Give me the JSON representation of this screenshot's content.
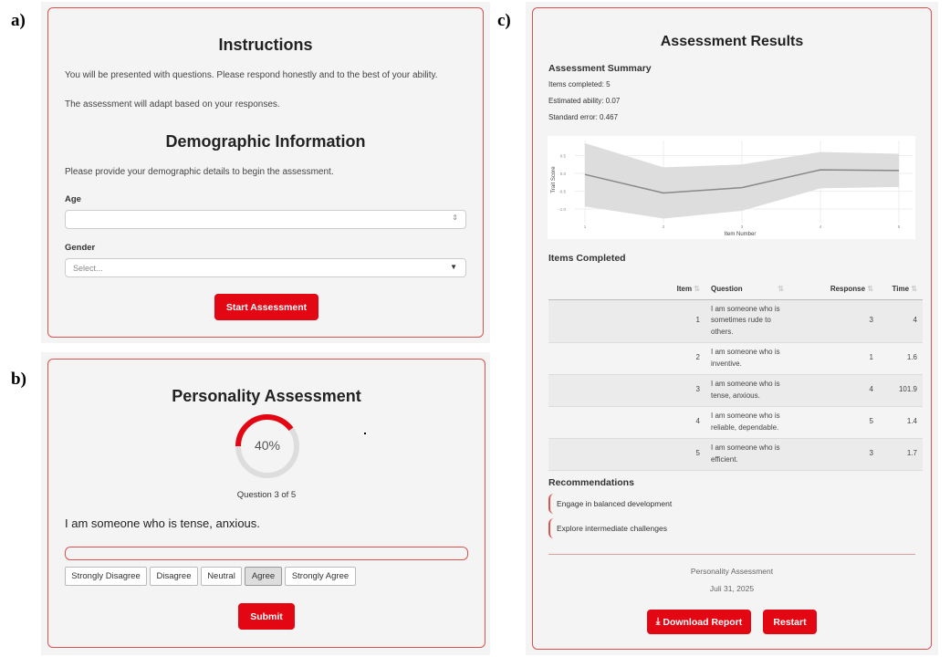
{
  "labels": {
    "a": "a)",
    "b": "b)",
    "c": "c)"
  },
  "panel_a": {
    "title": "Instructions",
    "text1": "You will be presented with questions. Please respond honestly and to the best of your ability.",
    "text2": "The assessment will adapt based on your responses.",
    "demo_title": "Demographic Information",
    "demo_text": "Please provide your demographic details to begin the assessment.",
    "age_label": "Age",
    "age_value": "",
    "gender_label": "Gender",
    "gender_placeholder": "Select...",
    "start_button": "Start Assessment"
  },
  "panel_b": {
    "title": "Personality Assessment",
    "progress_percent": 40,
    "progress_text": "40%",
    "question_counter": "Question 3 of 5",
    "question": "I am someone who is tense, anxious.",
    "options": [
      "Strongly Disagree",
      "Disagree",
      "Neutral",
      "Agree",
      "Strongly Agree"
    ],
    "selected": "Agree",
    "submit_button": "Submit"
  },
  "panel_c": {
    "title": "Assessment Results",
    "summary_title": "Assessment Summary",
    "items_completed": "Items completed: 5",
    "estimated_ability": "Estimated ability: 0.07",
    "standard_error": "Standard error: 0.467",
    "items_title": "Items Completed",
    "columns": [
      "Item",
      "Question",
      "Response",
      "Time"
    ],
    "rows": [
      {
        "item": "1",
        "question": "I am someone who is sometimes rude to others.",
        "response": "3",
        "time": "4"
      },
      {
        "item": "2",
        "question": "I am someone who is inventive.",
        "response": "1",
        "time": "1.6"
      },
      {
        "item": "3",
        "question": "I am someone who is tense, anxious.",
        "response": "4",
        "time": "101.9"
      },
      {
        "item": "4",
        "question": "I am someone who is reliable, dependable.",
        "response": "5",
        "time": "1.4"
      },
      {
        "item": "5",
        "question": "I am someone who is efficient.",
        "response": "3",
        "time": "1.7"
      }
    ],
    "recommendations_title": "Recommendations",
    "recommendations": [
      "Engage in balanced development",
      "Explore intermediate challenges"
    ],
    "footer_title": "Personality Assessment",
    "footer_date": "Juli 31, 2025",
    "download_button": "Download Report",
    "restart_button": "Restart"
  },
  "chart_data": {
    "type": "line",
    "xlabel": "Item Number",
    "ylabel": "Trait Score",
    "x": [
      1,
      2,
      3,
      4,
      5
    ],
    "xticks": [
      "1",
      "2",
      "3",
      "4",
      "5"
    ],
    "yticks": [
      "0.5",
      "0.0",
      "-0.5",
      "-1.0"
    ],
    "ylim": [
      -1.3,
      0.9
    ],
    "grid": true,
    "series": [
      {
        "values": [
          -0.03,
          -0.55,
          -0.4,
          0.1,
          0.08
        ],
        "upper": [
          0.85,
          0.17,
          0.25,
          0.6,
          0.55
        ],
        "lower": [
          -0.93,
          -1.27,
          -1.05,
          -0.42,
          -0.38
        ]
      }
    ]
  },
  "colors": {
    "accent": "#e30613",
    "border": "#d9534f",
    "panel": "#f4f4f4"
  }
}
